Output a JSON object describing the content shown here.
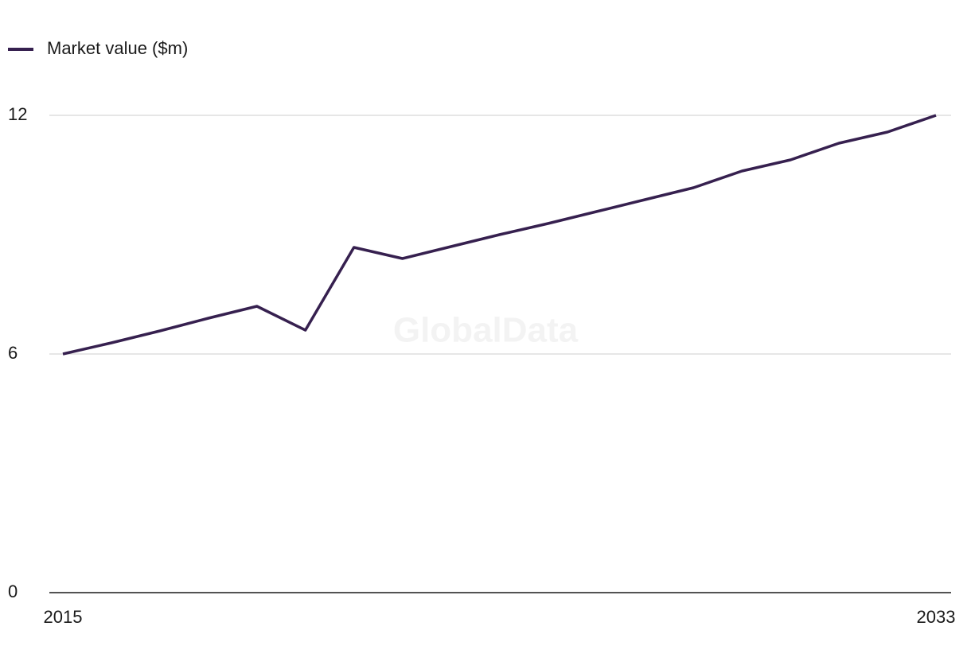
{
  "chart_data": {
    "type": "line",
    "x": [
      2015,
      2016,
      2017,
      2018,
      2019,
      2020,
      2021,
      2022,
      2023,
      2024,
      2025,
      2026,
      2027,
      2028,
      2029,
      2030,
      2031,
      2032,
      2033
    ],
    "series": [
      {
        "name": "Market value ($m)",
        "color": "#36204f",
        "values": [
          6.0,
          6.28,
          6.58,
          6.9,
          7.2,
          6.6,
          8.68,
          8.4,
          8.7,
          9.0,
          9.28,
          9.58,
          9.88,
          10.18,
          10.6,
          10.88,
          11.3,
          11.58,
          12.0
        ]
      }
    ],
    "xlim": [
      2015,
      2033
    ],
    "xticks": [
      2015,
      2033
    ],
    "ylim": [
      0,
      12
    ],
    "yticks": [
      0,
      6,
      12
    ],
    "grid": true,
    "legend": "top-left",
    "watermark": "GlobalData"
  }
}
